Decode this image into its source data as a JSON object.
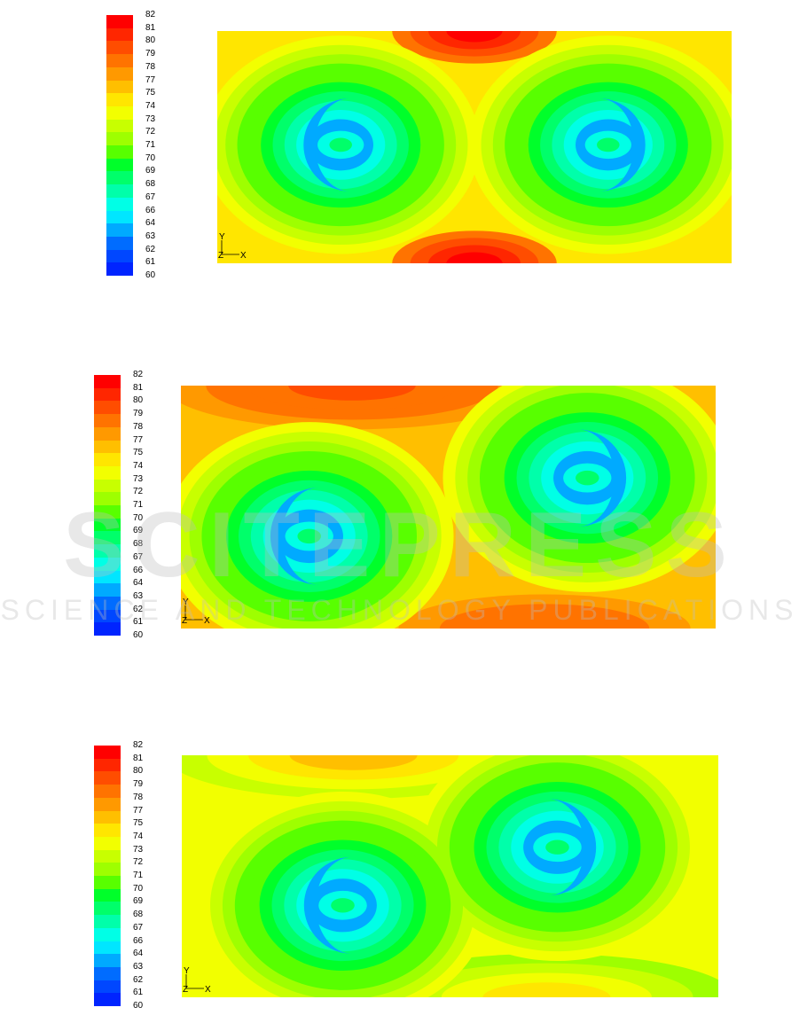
{
  "legend": {
    "ticks": [
      "82",
      "81",
      "80",
      "79",
      "78",
      "77",
      "75",
      "74",
      "73",
      "72",
      "71",
      "70",
      "69",
      "68",
      "67",
      "66",
      "64",
      "63",
      "62",
      "61",
      "60"
    ],
    "colors": [
      "#ff0000",
      "#ff2600",
      "#ff4d00",
      "#ff7300",
      "#ff9900",
      "#ffbf00",
      "#ffe600",
      "#f2ff00",
      "#c8ff00",
      "#9eff00",
      "#58ff00",
      "#00ff2a",
      "#00ff6a",
      "#00ffaa",
      "#00ffe6",
      "#00e6ff",
      "#00aaff",
      "#006cff",
      "#0047ff",
      "#0024ff"
    ]
  },
  "axes_triad": {
    "y_label": "Y",
    "z_label": "Z",
    "x_label": "X"
  },
  "watermark": {
    "main": "SCITEPRESS",
    "sub": "SCIENCE AND TECHNOLOGY PUBLICATIONS"
  },
  "chart_data": [
    {
      "type": "heatmap",
      "title": "",
      "color_range": [
        60,
        82
      ],
      "vortices": [
        {
          "center": [
            0.24,
            0.49
          ],
          "core_value": 68.5,
          "rotation": "ccw"
        },
        {
          "center": [
            0.76,
            0.49
          ],
          "core_value": 68.5,
          "rotation": "cw"
        }
      ],
      "hotspots": [
        {
          "location": "top-center",
          "value": 82
        },
        {
          "location": "bottom-center",
          "value": 82
        }
      ]
    },
    {
      "type": "heatmap",
      "title": "",
      "color_range": [
        60,
        82
      ],
      "vortices": [
        {
          "center": [
            0.24,
            0.62
          ],
          "core_value": 68.5,
          "rotation": "ccw"
        },
        {
          "center": [
            0.76,
            0.38
          ],
          "core_value": 68.5,
          "rotation": "cw"
        }
      ],
      "hotspots": [
        {
          "location": "top-left",
          "value": 80
        },
        {
          "location": "bottom-right",
          "value": 79
        }
      ]
    },
    {
      "type": "heatmap",
      "title": "",
      "color_range": [
        60,
        82
      ],
      "vortices": [
        {
          "center": [
            0.3,
            0.62
          ],
          "core_value": 68.5,
          "rotation": "ccw"
        },
        {
          "center": [
            0.7,
            0.38
          ],
          "core_value": 68.5,
          "rotation": "cw"
        }
      ],
      "hotspots": [
        {
          "location": "top-left",
          "value": 76
        },
        {
          "location": "bottom-right",
          "value": 75
        }
      ]
    }
  ]
}
